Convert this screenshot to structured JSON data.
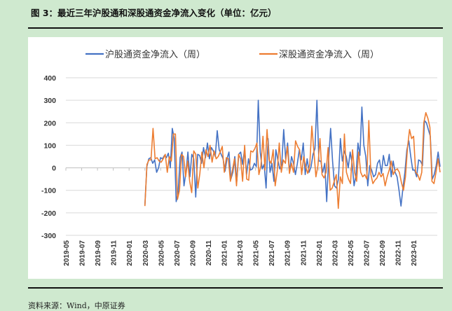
{
  "figure": {
    "title": "图 3：最近三年沪股通和深股通资金净流入变化（单位：亿元）",
    "source": "资料来源：Wind，中原证券"
  },
  "chart_data": {
    "type": "line",
    "legend_position": "top",
    "grid": "horizontal",
    "ylim": [
      -300,
      400
    ],
    "yticks": [
      400,
      300,
      200,
      100,
      0,
      -100,
      -200,
      -300
    ],
    "x_tick_labels": [
      "2019-05",
      "2019-07",
      "2019-09",
      "2019-11",
      "2020-01",
      "2020-03",
      "2020-05",
      "2020-07",
      "2020-09",
      "2020-11",
      "2021-01",
      "2021-03",
      "2021-05",
      "2021-07",
      "2021-09",
      "2021-11",
      "2022-01",
      "2022-03",
      "2022-05",
      "2022-07",
      "2022-09",
      "2022-11",
      "2023-01"
    ],
    "x_start": "2019-05",
    "x_end": "2023-04",
    "series": [
      {
        "name": "沪股通资金净流入（周）",
        "color": "#4472c4",
        "values": [
          -165,
          5,
          40,
          45,
          20,
          35,
          -20,
          0,
          45,
          40,
          55,
          45,
          65,
          0,
          175,
          130,
          -150,
          -110,
          45,
          70,
          -80,
          -20,
          70,
          -40,
          60,
          40,
          -130,
          60,
          55,
          20,
          90,
          45,
          110,
          40,
          90,
          75,
          50,
          165,
          80,
          60,
          40,
          -15,
          40,
          70,
          -50,
          -20,
          50,
          -60,
          60,
          70,
          15,
          85,
          -30,
          40,
          -10,
          -5,
          20,
          5,
          300,
          70,
          -5,
          15,
          -90,
          130,
          -20,
          20,
          -60,
          80,
          35,
          -5,
          15,
          170,
          40,
          110,
          -20,
          50,
          20,
          -30,
          20,
          80,
          35,
          110,
          -30,
          40,
          -20,
          5,
          60,
          85,
          300,
          30,
          30,
          -20,
          20,
          -150,
          40,
          175,
          30,
          -80,
          -90,
          -50,
          130,
          30,
          75,
          50,
          0,
          70,
          20,
          -80,
          -30,
          110,
          55,
          270,
          100,
          50,
          -80,
          10,
          -10,
          -40,
          -30,
          20,
          35,
          -25,
          55,
          10,
          10,
          60,
          -40,
          30,
          -20,
          -40,
          -100,
          -170,
          -90,
          -20,
          80,
          120,
          50,
          -10,
          -10,
          -40,
          35,
          30,
          10,
          210,
          200,
          170,
          140,
          -50,
          -30,
          10,
          70,
          5
        ]
      },
      {
        "name": "深股通资金净流入（周）",
        "color": "#ed7d31",
        "values": [
          -170,
          15,
          35,
          35,
          175,
          40,
          45,
          30,
          25,
          40,
          60,
          -20,
          50,
          30,
          150,
          150,
          -140,
          -100,
          60,
          50,
          -40,
          30,
          -60,
          -110,
          75,
          60,
          -90,
          -25,
          70,
          0,
          80,
          50,
          100,
          25,
          75,
          40,
          50,
          70,
          95,
          -20,
          45,
          40,
          -60,
          -10,
          40,
          -80,
          60,
          40,
          -60,
          100,
          -50,
          -55,
          75,
          70,
          85,
          110,
          -30,
          10,
          140,
          -10,
          170,
          35,
          20,
          80,
          -80,
          -15,
          110,
          -20,
          35,
          20,
          95,
          -25,
          20,
          -20,
          120,
          95,
          80,
          -30,
          50,
          5,
          -25,
          15,
          185,
          75,
          -40,
          10,
          130,
          -30,
          -45,
          -20,
          90,
          -100,
          -90,
          -60,
          -30,
          -180,
          -40,
          -70,
          150,
          -20,
          -50,
          -70,
          80,
          -20,
          -60,
          70,
          -20,
          -40,
          -30,
          -50,
          210,
          -30,
          -70,
          -55,
          -45,
          -20,
          -40,
          -25,
          -80,
          -40,
          -10,
          30,
          -30,
          -10,
          -5,
          -20,
          -65,
          -100,
          -40,
          90,
          170,
          130,
          140,
          -20,
          -30,
          -55,
          -20,
          200,
          245,
          220,
          180,
          -60,
          -70,
          -20,
          40,
          -20
        ]
      }
    ]
  }
}
